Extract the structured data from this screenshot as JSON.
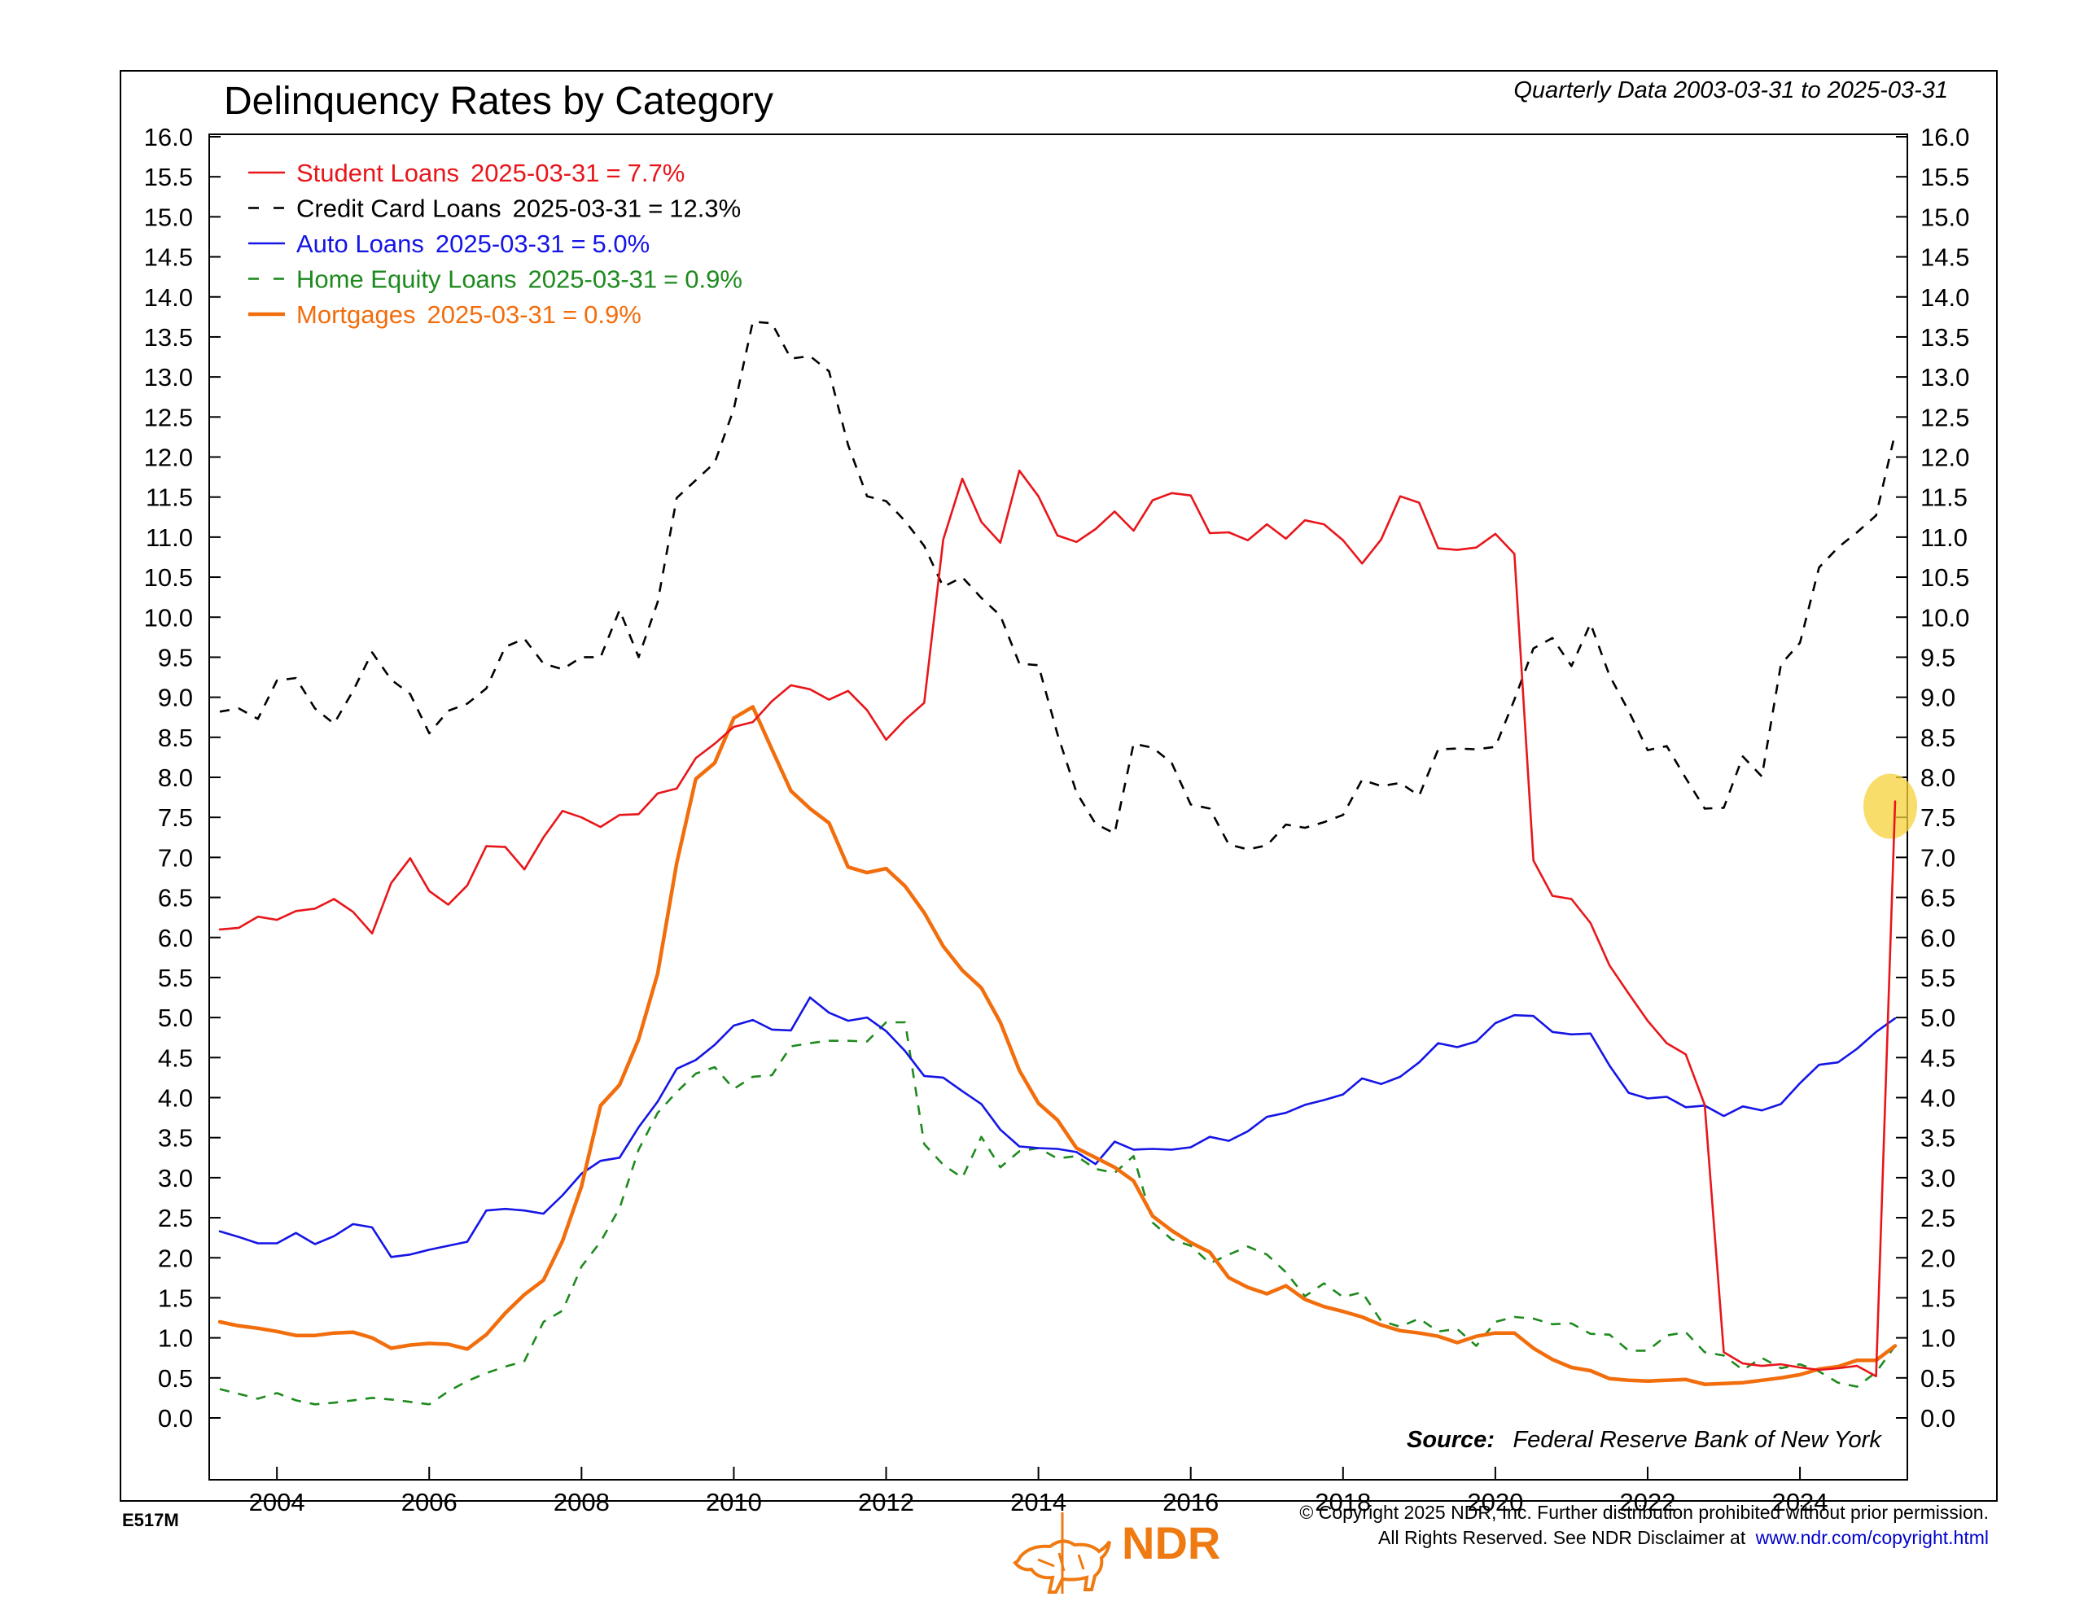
{
  "header": {
    "title": "Delinquency Rates by Category",
    "subtitle": "Quarterly Data 2003-03-31 to 2025-03-31"
  },
  "source": {
    "label": "Source:",
    "text": "Federal Reserve Bank of New York"
  },
  "footer": {
    "chart_code": "E517M",
    "logo_text": "NDR",
    "copyright_line1": "© Copyright 2025 NDR, Inc. Further distribution prohibited without prior permission.",
    "copyright_line2": "All Rights Reserved. See NDR Disclaimer at",
    "copyright_link": "www.ndr.com/copyright.html"
  },
  "colors": {
    "student": "#e8161b",
    "credit": "#000000",
    "auto": "#1515e6",
    "home_equity": "#1e8a1e",
    "mortgage": "#f26d0c",
    "highlight": "#f7d23a",
    "logo": "#f07a12"
  },
  "chart_data": {
    "type": "line",
    "title": "Delinquency Rates by Category",
    "xlabel": "",
    "ylabel": "",
    "xlim": [
      2003.2,
      2025.45
    ],
    "ylim": [
      -0.5,
      16.0
    ],
    "yticks": [
      0.0,
      0.5,
      1.0,
      1.5,
      2.0,
      2.5,
      3.0,
      3.5,
      4.0,
      4.5,
      5.0,
      5.5,
      6.0,
      6.5,
      7.0,
      7.5,
      8.0,
      8.5,
      9.0,
      9.5,
      10.0,
      10.5,
      11.0,
      11.5,
      12.0,
      12.5,
      13.0,
      13.5,
      14.0,
      14.5,
      15.0,
      15.5,
      16.0
    ],
    "ytick_labels": [
      "0.0",
      "0.5",
      "1.0",
      "1.5",
      "2.0",
      "2.5",
      "3.0",
      "3.5",
      "4.0",
      "4.5",
      "5.0",
      "5.5",
      "6.0",
      "6.5",
      "7.0",
      "7.5",
      "8.0",
      "8.5",
      "9.0",
      "9.5",
      "10.0",
      "10.5",
      "11.0",
      "11.5",
      "12.0",
      "12.5",
      "13.0",
      "13.5",
      "14.0",
      "14.5",
      "15.0",
      "15.5",
      "16.0"
    ],
    "xticks": [
      2004,
      2006,
      2008,
      2010,
      2012,
      2014,
      2016,
      2018,
      2020,
      2022,
      2024
    ],
    "xtick_labels": [
      "2004",
      "2006",
      "2008",
      "2010",
      "2012",
      "2014",
      "2016",
      "2018",
      "2020",
      "2022",
      "2024"
    ],
    "x_start": 2003.25,
    "x_step": 0.25,
    "grid": false,
    "legend_position": "top-left",
    "series": [
      {
        "name": "Student Loans",
        "legend_date": "2025-03-31",
        "legend_value": "7.7%",
        "color_key": "student",
        "style": "solid",
        "values": [
          6.1,
          6.12,
          6.26,
          6.22,
          6.33,
          6.36,
          6.48,
          6.32,
          6.05,
          6.68,
          6.99,
          6.58,
          6.41,
          6.65,
          7.14,
          7.13,
          6.85,
          7.25,
          7.58,
          7.5,
          7.38,
          7.53,
          7.54,
          7.8,
          7.86,
          8.24,
          8.42,
          8.63,
          8.69,
          8.95,
          9.15,
          9.1,
          8.97,
          9.08,
          8.84,
          8.47,
          8.72,
          8.93,
          10.97,
          11.73,
          11.19,
          10.93,
          11.83,
          11.51,
          11.02,
          10.94,
          11.1,
          11.32,
          11.08,
          11.46,
          11.55,
          11.52,
          11.05,
          11.06,
          10.96,
          11.16,
          10.98,
          11.21,
          11.16,
          10.96,
          10.67,
          10.97,
          11.51,
          11.43,
          10.86,
          10.84,
          10.87,
          11.04,
          10.79,
          6.96,
          6.52,
          6.48,
          6.18,
          5.65,
          5.3,
          4.96,
          4.68,
          4.54,
          3.91,
          0.82,
          0.68,
          0.65,
          0.67,
          0.63,
          0.6,
          0.62,
          0.65,
          0.52,
          7.7
        ]
      },
      {
        "name": "Credit Card Loans",
        "legend_date": "2025-03-31",
        "legend_value": "12.3%",
        "color_key": "credit",
        "style": "dashed",
        "values": [
          8.82,
          8.86,
          8.73,
          9.21,
          9.24,
          8.86,
          8.67,
          9.08,
          9.56,
          9.22,
          9.04,
          8.55,
          8.83,
          8.92,
          9.11,
          9.63,
          9.73,
          9.42,
          9.35,
          9.5,
          9.5,
          10.09,
          9.5,
          10.19,
          11.49,
          11.71,
          11.93,
          12.6,
          13.69,
          13.67,
          13.23,
          13.26,
          13.07,
          12.15,
          11.51,
          11.45,
          11.2,
          10.89,
          10.38,
          10.5,
          10.24,
          10.02,
          9.42,
          9.4,
          8.54,
          7.81,
          7.42,
          7.3,
          8.42,
          8.37,
          8.18,
          7.66,
          7.61,
          7.16,
          7.1,
          7.15,
          7.41,
          7.37,
          7.44,
          7.53,
          7.97,
          7.89,
          7.93,
          7.77,
          8.35,
          8.36,
          8.35,
          8.38,
          8.97,
          9.61,
          9.74,
          9.39,
          9.92,
          9.27,
          8.83,
          8.34,
          8.39,
          7.99,
          7.61,
          7.62,
          8.26,
          8.01,
          9.41,
          9.68,
          10.62,
          10.87,
          11.06,
          11.27,
          12.3
        ]
      },
      {
        "name": "Auto Loans",
        "legend_date": "2025-03-31",
        "legend_value": "5.0%",
        "color_key": "auto",
        "style": "solid",
        "values": [
          2.33,
          2.26,
          2.18,
          2.18,
          2.31,
          2.17,
          2.27,
          2.42,
          2.38,
          2.01,
          2.04,
          2.1,
          2.15,
          2.2,
          2.59,
          2.61,
          2.59,
          2.55,
          2.78,
          3.05,
          3.21,
          3.25,
          3.63,
          3.95,
          4.36,
          4.47,
          4.66,
          4.9,
          4.97,
          4.85,
          4.84,
          5.25,
          5.06,
          4.96,
          5.0,
          4.83,
          4.58,
          4.27,
          4.25,
          4.08,
          3.92,
          3.6,
          3.39,
          3.37,
          3.36,
          3.32,
          3.17,
          3.45,
          3.35,
          3.36,
          3.35,
          3.38,
          3.51,
          3.46,
          3.58,
          3.76,
          3.81,
          3.91,
          3.97,
          4.04,
          4.24,
          4.17,
          4.26,
          4.44,
          4.68,
          4.63,
          4.7,
          4.93,
          5.03,
          5.02,
          4.82,
          4.79,
          4.8,
          4.4,
          4.06,
          3.99,
          4.01,
          3.88,
          3.9,
          3.77,
          3.89,
          3.84,
          3.92,
          4.18,
          4.41,
          4.44,
          4.61,
          4.82,
          4.99
        ]
      },
      {
        "name": "Home Equity Loans",
        "legend_date": "2025-03-31",
        "legend_value": "0.9%",
        "color_key": "home_equity",
        "style": "dashed",
        "values": [
          0.36,
          0.3,
          0.24,
          0.31,
          0.22,
          0.17,
          0.19,
          0.22,
          0.25,
          0.23,
          0.2,
          0.17,
          0.33,
          0.46,
          0.56,
          0.64,
          0.71,
          1.2,
          1.34,
          1.89,
          2.2,
          2.62,
          3.35,
          3.81,
          4.07,
          4.3,
          4.38,
          4.11,
          4.26,
          4.28,
          4.64,
          4.68,
          4.71,
          4.71,
          4.7,
          4.94,
          4.94,
          3.42,
          3.16,
          3.0,
          3.51,
          3.13,
          3.33,
          3.37,
          3.24,
          3.27,
          3.11,
          3.06,
          3.27,
          2.44,
          2.23,
          2.15,
          1.93,
          2.04,
          2.14,
          2.04,
          1.82,
          1.52,
          1.68,
          1.51,
          1.57,
          1.21,
          1.14,
          1.24,
          1.08,
          1.11,
          0.9,
          1.2,
          1.26,
          1.24,
          1.17,
          1.18,
          1.05,
          1.04,
          0.84,
          0.84,
          1.03,
          1.07,
          0.82,
          0.78,
          0.6,
          0.75,
          0.62,
          0.67,
          0.58,
          0.44,
          0.39,
          0.57,
          0.9
        ]
      },
      {
        "name": "Mortgages",
        "legend_date": "2025-03-31",
        "legend_value": "0.9%",
        "color_key": "mortgage",
        "style": "solid-thick",
        "values": [
          1.2,
          1.15,
          1.12,
          1.08,
          1.03,
          1.03,
          1.06,
          1.07,
          1.0,
          0.87,
          0.91,
          0.93,
          0.92,
          0.86,
          1.04,
          1.31,
          1.54,
          1.72,
          2.21,
          2.89,
          3.9,
          4.16,
          4.73,
          5.55,
          6.93,
          7.98,
          8.18,
          8.74,
          8.88,
          8.35,
          7.83,
          7.61,
          7.43,
          6.88,
          6.81,
          6.86,
          6.64,
          6.31,
          5.89,
          5.59,
          5.37,
          4.94,
          4.34,
          3.93,
          3.72,
          3.37,
          3.25,
          3.13,
          2.96,
          2.52,
          2.34,
          2.19,
          2.07,
          1.75,
          1.63,
          1.55,
          1.65,
          1.48,
          1.39,
          1.33,
          1.26,
          1.16,
          1.09,
          1.06,
          1.02,
          0.94,
          1.02,
          1.06,
          1.06,
          0.87,
          0.73,
          0.63,
          0.59,
          0.49,
          0.47,
          0.46,
          0.47,
          0.48,
          0.42,
          0.43,
          0.44,
          0.47,
          0.5,
          0.54,
          0.61,
          0.64,
          0.72,
          0.72,
          0.9
        ]
      }
    ],
    "annotations": [
      {
        "type": "highlight-circle",
        "x": 2025.25,
        "y": 7.7
      }
    ]
  }
}
